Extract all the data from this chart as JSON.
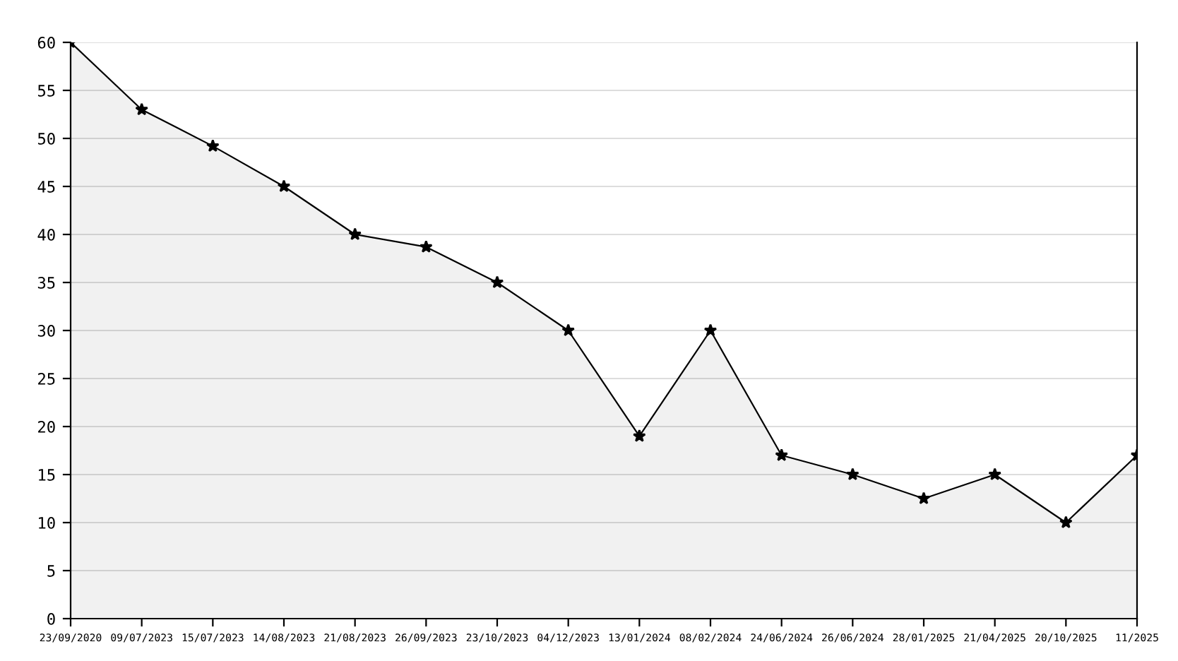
{
  "chart_data": {
    "type": "area",
    "categories": [
      "23/09/2020",
      "09/07/2023",
      "15/07/2023",
      "14/08/2023",
      "21/08/2023",
      "26/09/2023",
      "23/10/2023",
      "04/12/2023",
      "13/01/2024",
      "08/02/2024",
      "24/06/2024",
      "26/06/2024",
      "28/01/2025",
      "21/04/2025",
      "20/10/2025",
      "11/2025"
    ],
    "series": [
      {
        "color": "#000000",
        "values": [
          60,
          53,
          49.2,
          45,
          40,
          38.7,
          35,
          30,
          19,
          30,
          17,
          15,
          12.5,
          15,
          10,
          17
        ]
      }
    ],
    "ylim": [
      0,
      60
    ],
    "yticks": [
      0,
      5,
      10,
      15,
      20,
      25,
      30,
      35,
      40,
      45,
      50,
      55,
      60
    ],
    "grid": "y",
    "marker": "star",
    "line_style": "solid"
  }
}
